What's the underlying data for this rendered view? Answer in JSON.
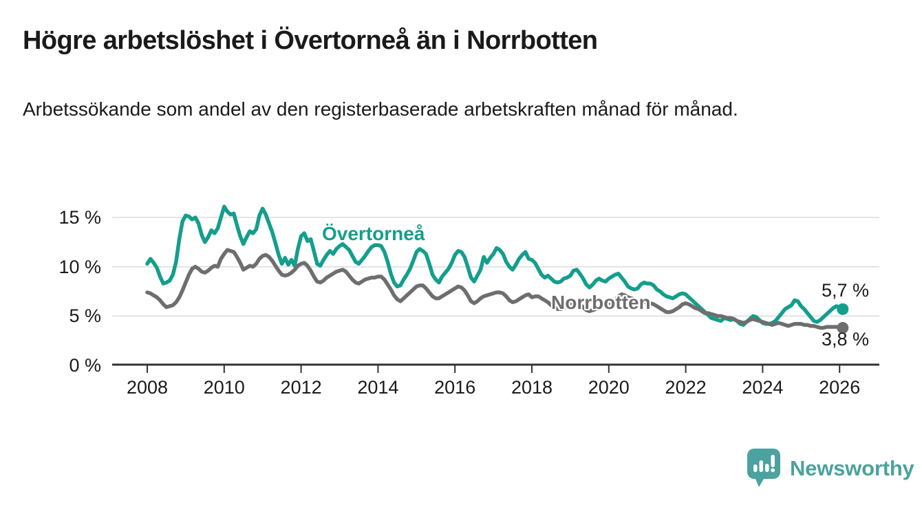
{
  "header": {
    "title": "Högre arbetslöshet i Övertorneå än i Norrbotten",
    "subtitle": "Arbetssökande som andel av den registerbaserade arbetskraften månad för månad."
  },
  "chart_data": {
    "type": "line",
    "unit": "%",
    "x_start_year": 2008,
    "x_resolution": "monthly",
    "ylim": [
      0,
      17
    ],
    "grid": "horizontal",
    "ytick_values": [
      0,
      5,
      10,
      15
    ],
    "ytick_labels": [
      "0 %",
      "5 %",
      "10 %",
      "15 %"
    ],
    "xtick_years": [
      2008,
      2010,
      2012,
      2014,
      2016,
      2018,
      2020,
      2022,
      2024,
      2026
    ],
    "series": [
      {
        "name": "Övertorneå",
        "color": "#149e8c",
        "end_label": "5,7 %",
        "last_value": 5.7,
        "values": [
          10.3,
          10.8,
          10.4,
          9.9,
          9.0,
          8.3,
          8.4,
          8.6,
          9.2,
          10.5,
          12.8,
          14.6,
          15.2,
          15.1,
          14.8,
          15.0,
          14.4,
          13.2,
          12.5,
          13.0,
          13.7,
          13.4,
          13.9,
          15.0,
          16.1,
          15.6,
          15.3,
          15.4,
          14.2,
          13.1,
          12.3,
          13.0,
          13.6,
          13.4,
          13.8,
          15.2,
          15.9,
          15.3,
          14.4,
          13.5,
          12.4,
          11.2,
          10.3,
          10.9,
          10.2,
          10.7,
          10.1,
          11.8,
          13.1,
          13.4,
          12.6,
          12.8,
          11.6,
          10.3,
          10.1,
          10.7,
          11.2,
          11.6,
          11.3,
          11.8,
          12.1,
          12.3,
          12.0,
          11.7,
          11.1,
          10.5,
          10.3,
          10.7,
          11.1,
          11.6,
          12.0,
          12.2,
          12.2,
          12.1,
          11.5,
          10.5,
          9.3,
          8.4,
          8.0,
          8.1,
          8.7,
          9.2,
          9.8,
          10.6,
          11.5,
          11.8,
          11.6,
          11.3,
          10.3,
          9.2,
          8.7,
          8.4,
          9.0,
          9.4,
          9.8,
          10.4,
          11.2,
          11.6,
          11.5,
          11.0,
          10.0,
          8.9,
          8.5,
          9.1,
          9.7,
          11.0,
          10.4,
          10.9,
          11.3,
          11.9,
          11.7,
          11.3,
          10.5,
          10.0,
          9.7,
          10.2,
          10.8,
          11.2,
          11.5,
          10.8,
          10.7,
          10.4,
          9.8,
          9.2,
          8.9,
          9.1,
          8.8,
          8.5,
          8.4,
          8.5,
          8.8,
          8.9,
          9.1,
          9.6,
          9.7,
          9.3,
          8.8,
          8.2,
          7.9,
          8.2,
          8.6,
          8.8,
          8.6,
          8.5,
          8.8,
          9.0,
          9.2,
          9.3,
          8.9,
          8.5,
          8.0,
          7.8,
          7.7,
          7.8,
          8.2,
          8.4,
          8.3,
          8.3,
          8.1,
          7.7,
          7.5,
          7.2,
          7.0,
          6.9,
          6.8,
          7.0,
          7.2,
          7.3,
          7.2,
          6.9,
          6.6,
          6.3,
          6.0,
          5.7,
          5.4,
          5.1,
          4.8,
          4.7,
          4.6,
          4.5,
          4.8,
          4.7,
          4.6,
          4.7,
          4.5,
          4.2,
          4.1,
          4.4,
          4.7,
          5.0,
          4.9,
          4.6,
          4.3,
          4.2,
          4.2,
          4.3,
          4.5,
          4.9,
          5.3,
          5.7,
          5.9,
          6.1,
          6.6,
          6.5,
          6.0,
          5.7,
          5.3,
          4.9,
          4.5,
          4.4,
          4.6,
          4.9,
          5.2,
          5.5,
          5.8,
          6.0,
          5.9,
          5.7
        ]
      },
      {
        "name": "Norrbotten",
        "color": "#6e6e6e",
        "end_label": "3,8 %",
        "last_value": 3.8,
        "values": [
          7.4,
          7.3,
          7.1,
          6.9,
          6.6,
          6.2,
          5.9,
          6.0,
          6.1,
          6.4,
          6.9,
          7.6,
          8.4,
          9.2,
          9.8,
          10.0,
          9.8,
          9.5,
          9.4,
          9.6,
          9.9,
          10.1,
          10.0,
          10.8,
          11.3,
          11.7,
          11.6,
          11.5,
          11.0,
          10.4,
          9.7,
          9.9,
          10.1,
          10.0,
          10.3,
          10.8,
          11.1,
          11.2,
          11.0,
          10.6,
          10.1,
          9.6,
          9.2,
          9.1,
          9.2,
          9.4,
          9.7,
          10.1,
          10.3,
          10.4,
          10.1,
          9.6,
          9.0,
          8.5,
          8.4,
          8.6,
          8.9,
          9.1,
          9.3,
          9.5,
          9.6,
          9.7,
          9.5,
          9.1,
          8.7,
          8.4,
          8.3,
          8.5,
          8.7,
          8.8,
          8.9,
          8.9,
          9.0,
          9.0,
          8.7,
          8.2,
          7.7,
          7.1,
          6.7,
          6.5,
          6.8,
          7.1,
          7.4,
          7.7,
          8.0,
          8.1,
          8.1,
          7.8,
          7.4,
          7.0,
          6.8,
          6.8,
          7.0,
          7.2,
          7.4,
          7.6,
          7.8,
          8.0,
          7.9,
          7.6,
          7.1,
          6.5,
          6.3,
          6.5,
          6.8,
          7.0,
          7.1,
          7.2,
          7.3,
          7.4,
          7.4,
          7.3,
          7.0,
          6.6,
          6.4,
          6.5,
          6.7,
          6.9,
          7.1,
          7.2,
          6.9,
          7.0,
          7.0,
          6.8,
          6.6,
          6.4,
          6.1,
          5.9,
          5.7,
          5.7,
          5.8,
          6.0,
          6.2,
          6.4,
          6.4,
          6.2,
          5.9,
          5.6,
          5.5,
          5.6,
          5.7,
          5.8,
          5.9,
          6.1,
          6.3,
          6.4,
          6.6,
          7.0,
          7.2,
          7.1,
          6.9,
          6.8,
          6.7,
          6.5,
          6.4,
          6.4,
          6.4,
          6.3,
          6.2,
          6.0,
          5.8,
          5.6,
          5.4,
          5.4,
          5.5,
          5.7,
          5.9,
          6.2,
          6.3,
          6.2,
          6.0,
          5.8,
          5.7,
          5.5,
          5.3,
          5.3,
          5.2,
          5.1,
          5.0,
          5.0,
          4.9,
          4.8,
          4.8,
          4.7,
          4.5,
          4.4,
          4.3,
          4.4,
          4.6,
          4.7,
          4.6,
          4.5,
          4.4,
          4.3,
          4.2,
          4.1,
          4.2,
          4.3,
          4.2,
          4.1,
          4.0,
          4.1,
          4.2,
          4.2,
          4.2,
          4.1,
          4.1,
          4.0,
          4.0,
          3.9,
          3.8,
          3.8,
          3.9,
          3.9,
          3.9,
          3.9,
          3.9,
          3.8
        ]
      }
    ],
    "colors": {
      "grid": "#dbdbdb",
      "axis": "#333333",
      "text": "#1a1a1a"
    }
  },
  "branding": {
    "logo_text": "Newsworthy",
    "logo_color": "#4ba29e"
  }
}
